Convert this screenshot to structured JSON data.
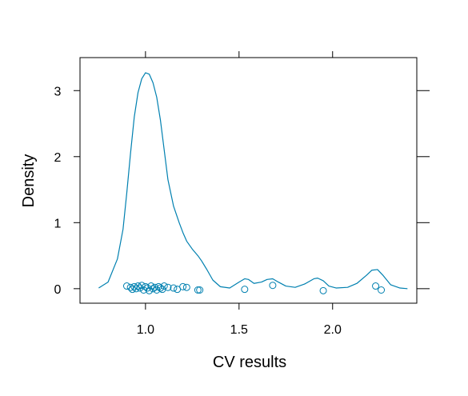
{
  "chart_data": {
    "type": "density",
    "xlabel": "CV results",
    "ylabel": "Density",
    "xlim": [
      0.65,
      2.45
    ],
    "ylim": [
      -0.22,
      3.5
    ],
    "x_ticks": [
      1.0,
      1.5,
      2.0
    ],
    "x_tick_labels": [
      "1.0",
      "1.5",
      "2.0"
    ],
    "y_ticks": [
      0,
      1,
      2,
      3
    ],
    "y_tick_labels": [
      "0",
      "1",
      "2",
      "3"
    ],
    "grid": false,
    "legend": "none",
    "color": "#0080B0",
    "density_curve": {
      "x": [
        0.75,
        0.8,
        0.85,
        0.88,
        0.9,
        0.92,
        0.94,
        0.96,
        0.98,
        1.0,
        1.02,
        1.04,
        1.06,
        1.08,
        1.1,
        1.12,
        1.15,
        1.18,
        1.2,
        1.22,
        1.25,
        1.28,
        1.3,
        1.33,
        1.36,
        1.4,
        1.45,
        1.5,
        1.53,
        1.55,
        1.58,
        1.62,
        1.65,
        1.68,
        1.71,
        1.75,
        1.8,
        1.85,
        1.9,
        1.92,
        1.95,
        1.98,
        2.02,
        2.08,
        2.13,
        2.18,
        2.21,
        2.24,
        2.27,
        2.31,
        2.36,
        2.4
      ],
      "y": [
        0.01,
        0.1,
        0.45,
        0.9,
        1.45,
        2.05,
        2.6,
        2.97,
        3.18,
        3.27,
        3.25,
        3.12,
        2.9,
        2.55,
        2.1,
        1.65,
        1.25,
        1.0,
        0.85,
        0.72,
        0.6,
        0.5,
        0.42,
        0.28,
        0.13,
        0.03,
        0.01,
        0.1,
        0.15,
        0.14,
        0.08,
        0.1,
        0.14,
        0.15,
        0.1,
        0.04,
        0.02,
        0.07,
        0.15,
        0.16,
        0.12,
        0.04,
        0.01,
        0.02,
        0.08,
        0.2,
        0.28,
        0.29,
        0.2,
        0.06,
        0.01,
        0.0
      ]
    },
    "points": {
      "x": [
        0.9,
        0.92,
        0.93,
        0.94,
        0.95,
        0.96,
        0.97,
        0.98,
        0.99,
        1.0,
        1.01,
        1.02,
        1.03,
        1.04,
        1.05,
        1.06,
        1.07,
        1.08,
        1.09,
        1.1,
        1.12,
        1.15,
        1.17,
        1.2,
        1.22,
        1.28,
        1.29,
        1.53,
        1.68,
        1.95,
        2.23,
        2.26
      ],
      "y": [
        0.04,
        0.02,
        -0.01,
        0.03,
        0.0,
        0.04,
        0.01,
        0.05,
        -0.02,
        0.03,
        0.01,
        -0.03,
        0.04,
        0.0,
        0.02,
        -0.02,
        0.03,
        0.01,
        -0.01,
        0.04,
        0.02,
        0.01,
        -0.01,
        0.03,
        0.02,
        -0.02,
        -0.02,
        -0.01,
        0.05,
        -0.03,
        0.04,
        -0.02
      ]
    }
  }
}
